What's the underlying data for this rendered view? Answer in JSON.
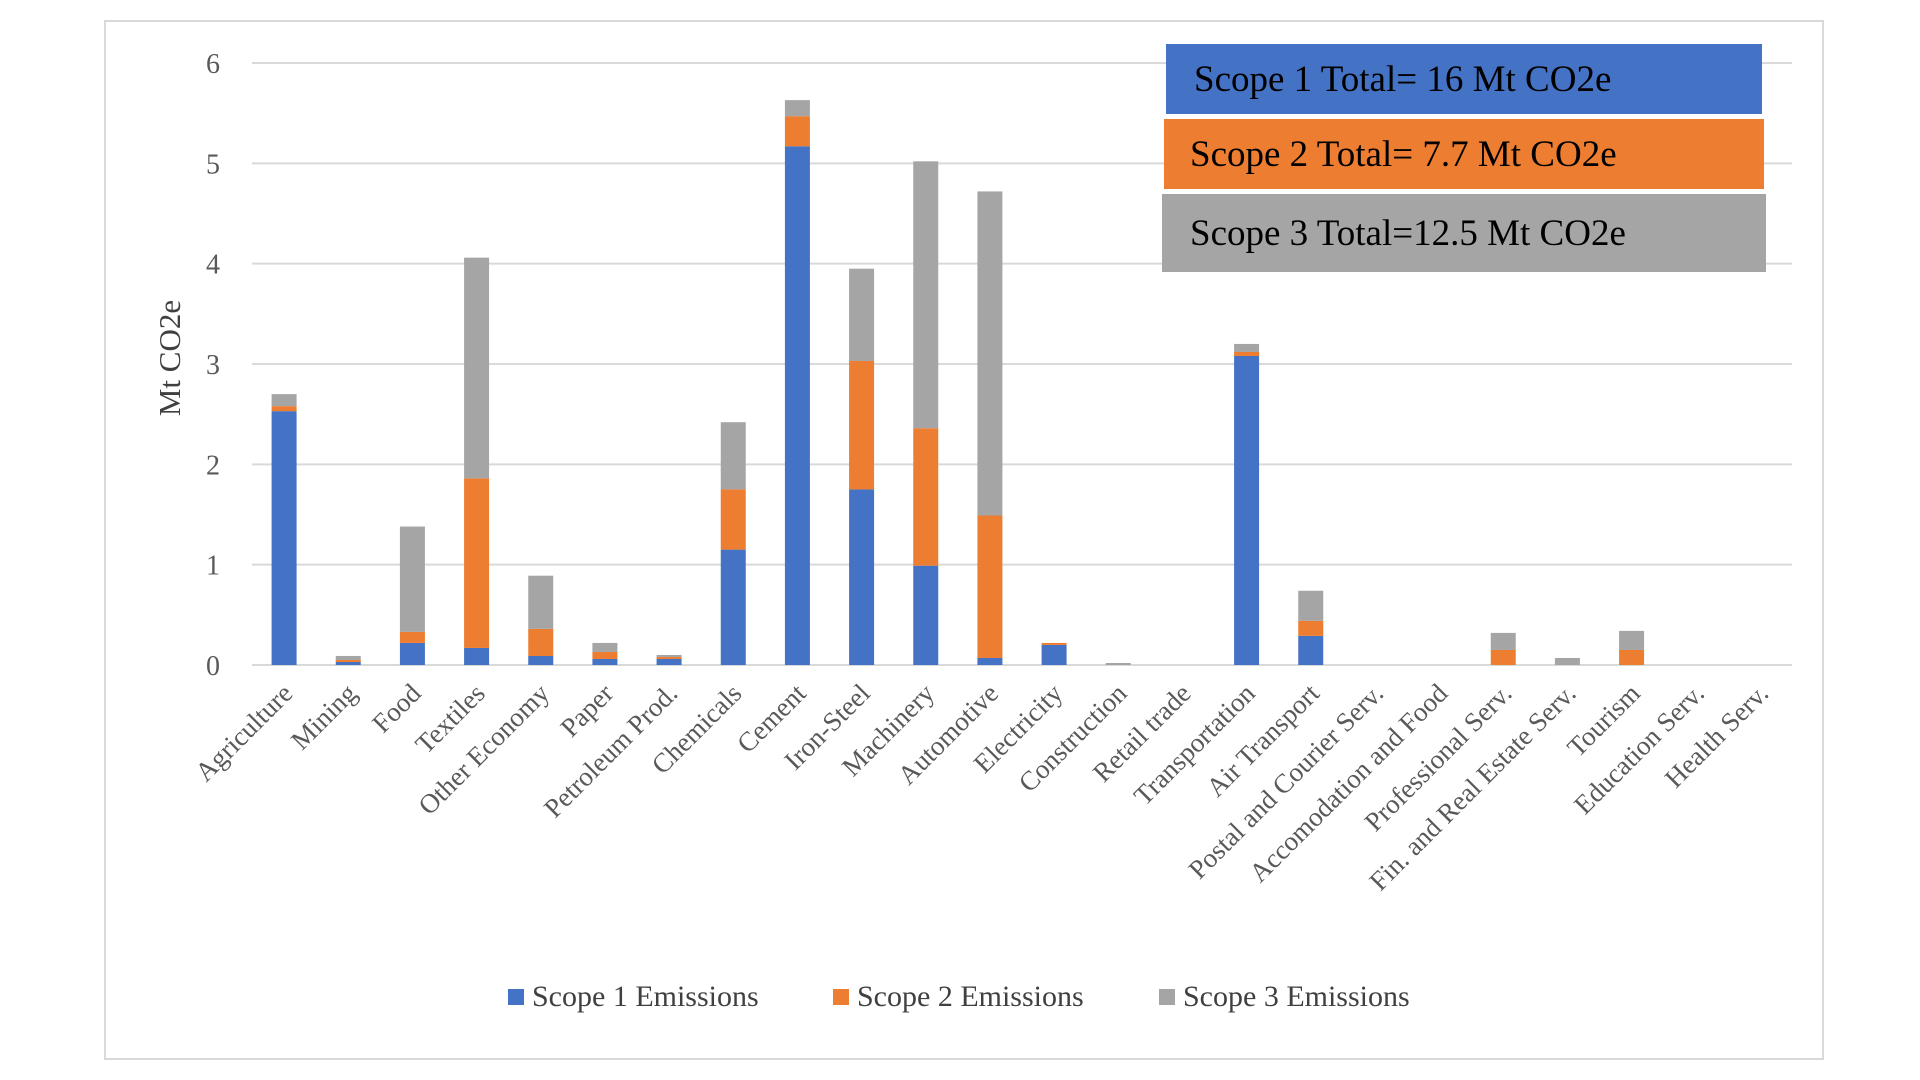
{
  "chart_data": {
    "type": "bar",
    "stacked": true,
    "categories": [
      "Agriculture",
      "Mining",
      "Food",
      "Textiles",
      "Other Economy",
      "Paper",
      "Petroleum Prod.",
      "Chemicals",
      "Cement",
      "Iron-Steel",
      "Machinery",
      "Automotive",
      "Electricity",
      "Construction",
      "Retail trade",
      "Transportation",
      "Air Transport",
      "Postal and Courier Serv.",
      "Accomodation and Food",
      "Professional Serv.",
      "Fin. and Real Estate Serv.",
      "Tourism",
      "Education Serv.",
      "Health Serv."
    ],
    "series": [
      {
        "name": "Scope 1 Emissions",
        "color": "#4472c4",
        "values": [
          2.53,
          0.03,
          0.22,
          0.17,
          0.09,
          0.06,
          0.06,
          1.15,
          5.17,
          1.75,
          0.99,
          0.07,
          0.2,
          0.0,
          0.0,
          3.08,
          0.29,
          0.0,
          0.0,
          0.0,
          0.0,
          0.0,
          0.0,
          0.0
        ]
      },
      {
        "name": "Scope 2 Emissions",
        "color": "#ed7d31",
        "values": [
          0.05,
          0.02,
          0.11,
          1.69,
          0.27,
          0.07,
          0.02,
          0.6,
          0.3,
          1.28,
          1.37,
          1.42,
          0.02,
          0.0,
          0.0,
          0.04,
          0.15,
          0.0,
          0.0,
          0.15,
          0.0,
          0.15,
          0.0,
          0.0
        ]
      },
      {
        "name": "Scope 3 Emissions",
        "color": "#a5a5a5",
        "values": [
          0.12,
          0.04,
          1.05,
          2.2,
          0.53,
          0.09,
          0.02,
          0.67,
          0.16,
          0.92,
          2.66,
          3.23,
          0.0,
          0.02,
          0.0,
          0.08,
          0.3,
          0.0,
          0.0,
          0.17,
          0.07,
          0.19,
          0.0,
          0.0
        ]
      }
    ],
    "ylabel": "Mt CO2e",
    "xlabel": "",
    "ylim": [
      0,
      6
    ],
    "yticks": [
      "0",
      "1",
      "2",
      "3",
      "4",
      "5",
      "6"
    ],
    "grid": true,
    "legend_position": "bottom",
    "annotations": [
      {
        "text": "Scope 1 Total= 16 Mt CO2e",
        "color": "#4472c4"
      },
      {
        "text": "Scope 2 Total= 7.7 Mt CO2e",
        "color": "#ed7d31"
      },
      {
        "text": "Scope 3 Total=12.5 Mt CO2e",
        "color": "#a5a5a5"
      }
    ]
  }
}
